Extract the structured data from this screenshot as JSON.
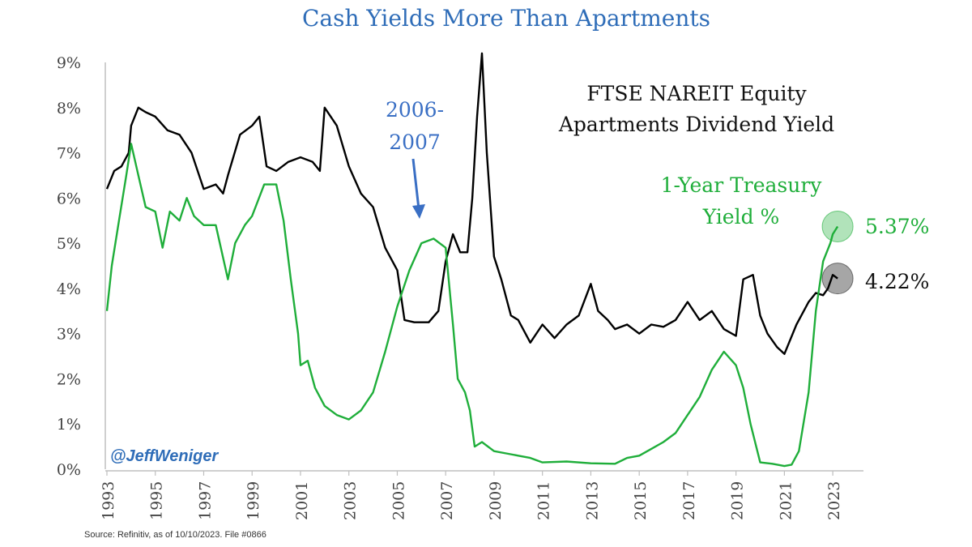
{
  "title": "Cash Yields More Than Apartments",
  "source": "Source: Refinitiv, as of 10/10/2023. File #0866",
  "handle": "@JeffWeniger",
  "colors": {
    "apartments": "#000000",
    "treasury": "#1fae3a",
    "title": "#2f6db8",
    "arrow": "#3a6fc4"
  },
  "chart_data": {
    "type": "line",
    "title": "Cash Yields More Than Apartments",
    "xlabel": "",
    "ylabel": "",
    "xlim": [
      1993,
      2024
    ],
    "ylim": [
      0,
      9
    ],
    "grid": false,
    "x_ticks": [
      "1993",
      "1995",
      "1997",
      "1999",
      "2001",
      "2003",
      "2005",
      "2007",
      "2009",
      "2011",
      "2013",
      "2015",
      "2017",
      "2019",
      "2021",
      "2023"
    ],
    "y_ticks": [
      "0%",
      "1%",
      "2%",
      "3%",
      "4%",
      "5%",
      "6%",
      "7%",
      "8%",
      "9%"
    ],
    "series": [
      {
        "name": "FTSE NAREIT Equity Apartments Dividend Yield",
        "color": "#000000",
        "points": [
          [
            1993.0,
            6.2
          ],
          [
            1993.3,
            6.6
          ],
          [
            1993.6,
            6.7
          ],
          [
            1993.9,
            7.0
          ],
          [
            1994.0,
            7.6
          ],
          [
            1994.3,
            8.0
          ],
          [
            1994.6,
            7.9
          ],
          [
            1995.0,
            7.8
          ],
          [
            1995.5,
            7.5
          ],
          [
            1996.0,
            7.4
          ],
          [
            1996.5,
            7.0
          ],
          [
            1997.0,
            6.2
          ],
          [
            1997.5,
            6.3
          ],
          [
            1997.8,
            6.1
          ],
          [
            1998.0,
            6.5
          ],
          [
            1998.5,
            7.4
          ],
          [
            1999.0,
            7.6
          ],
          [
            1999.3,
            7.8
          ],
          [
            1999.6,
            6.7
          ],
          [
            2000.0,
            6.6
          ],
          [
            2000.5,
            6.8
          ],
          [
            2001.0,
            6.9
          ],
          [
            2001.5,
            6.8
          ],
          [
            2001.8,
            6.6
          ],
          [
            2002.0,
            8.0
          ],
          [
            2002.5,
            7.6
          ],
          [
            2003.0,
            6.7
          ],
          [
            2003.5,
            6.1
          ],
          [
            2004.0,
            5.8
          ],
          [
            2004.5,
            4.9
          ],
          [
            2005.0,
            4.4
          ],
          [
            2005.3,
            3.3
          ],
          [
            2005.7,
            3.25
          ],
          [
            2006.3,
            3.25
          ],
          [
            2006.7,
            3.5
          ],
          [
            2007.0,
            4.6
          ],
          [
            2007.3,
            5.2
          ],
          [
            2007.6,
            4.8
          ],
          [
            2007.9,
            4.8
          ],
          [
            2008.1,
            6.0
          ],
          [
            2008.3,
            7.8
          ],
          [
            2008.5,
            9.2
          ],
          [
            2008.7,
            7.0
          ],
          [
            2009.0,
            4.7
          ],
          [
            2009.3,
            4.2
          ],
          [
            2009.7,
            3.4
          ],
          [
            2010.0,
            3.3
          ],
          [
            2010.5,
            2.8
          ],
          [
            2011.0,
            3.2
          ],
          [
            2011.5,
            2.9
          ],
          [
            2012.0,
            3.2
          ],
          [
            2012.5,
            3.4
          ],
          [
            2013.0,
            4.1
          ],
          [
            2013.3,
            3.5
          ],
          [
            2013.7,
            3.3
          ],
          [
            2014.0,
            3.1
          ],
          [
            2014.5,
            3.2
          ],
          [
            2015.0,
            3.0
          ],
          [
            2015.5,
            3.2
          ],
          [
            2016.0,
            3.15
          ],
          [
            2016.5,
            3.3
          ],
          [
            2017.0,
            3.7
          ],
          [
            2017.5,
            3.3
          ],
          [
            2018.0,
            3.5
          ],
          [
            2018.5,
            3.1
          ],
          [
            2019.0,
            2.95
          ],
          [
            2019.3,
            4.2
          ],
          [
            2019.7,
            4.3
          ],
          [
            2020.0,
            3.4
          ],
          [
            2020.3,
            3.0
          ],
          [
            2020.7,
            2.7
          ],
          [
            2021.0,
            2.55
          ],
          [
            2021.5,
            3.2
          ],
          [
            2022.0,
            3.7
          ],
          [
            2022.3,
            3.9
          ],
          [
            2022.6,
            3.85
          ],
          [
            2022.8,
            4.0
          ],
          [
            2023.0,
            4.3
          ],
          [
            2023.2,
            4.22
          ]
        ]
      },
      {
        "name": "1-Year Treasury Yield %",
        "color": "#1fae3a",
        "points": [
          [
            1993.0,
            3.5
          ],
          [
            1993.2,
            4.5
          ],
          [
            1993.5,
            5.5
          ],
          [
            1993.8,
            6.5
          ],
          [
            1994.0,
            7.2
          ],
          [
            1994.3,
            6.5
          ],
          [
            1994.6,
            5.8
          ],
          [
            1995.0,
            5.7
          ],
          [
            1995.3,
            4.9
          ],
          [
            1995.6,
            5.7
          ],
          [
            1996.0,
            5.5
          ],
          [
            1996.3,
            6.0
          ],
          [
            1996.6,
            5.6
          ],
          [
            1997.0,
            5.4
          ],
          [
            1997.5,
            5.4
          ],
          [
            1998.0,
            4.2
          ],
          [
            1998.3,
            5.0
          ],
          [
            1998.7,
            5.4
          ],
          [
            1999.0,
            5.6
          ],
          [
            1999.5,
            6.3
          ],
          [
            2000.0,
            6.3
          ],
          [
            2000.3,
            5.5
          ],
          [
            2000.6,
            4.2
          ],
          [
            2000.9,
            3.0
          ],
          [
            2001.0,
            2.3
          ],
          [
            2001.3,
            2.4
          ],
          [
            2001.6,
            1.8
          ],
          [
            2002.0,
            1.4
          ],
          [
            2002.5,
            1.2
          ],
          [
            2003.0,
            1.1
          ],
          [
            2003.5,
            1.3
          ],
          [
            2004.0,
            1.7
          ],
          [
            2004.5,
            2.6
          ],
          [
            2005.0,
            3.6
          ],
          [
            2005.5,
            4.4
          ],
          [
            2006.0,
            5.0
          ],
          [
            2006.5,
            5.1
          ],
          [
            2007.0,
            4.9
          ],
          [
            2007.3,
            3.2
          ],
          [
            2007.5,
            2.0
          ],
          [
            2007.8,
            1.7
          ],
          [
            2008.0,
            1.3
          ],
          [
            2008.2,
            0.5
          ],
          [
            2008.5,
            0.6
          ],
          [
            2009.0,
            0.4
          ],
          [
            2009.5,
            0.35
          ],
          [
            2010.0,
            0.3
          ],
          [
            2010.5,
            0.25
          ],
          [
            2011.0,
            0.15
          ],
          [
            2012.0,
            0.17
          ],
          [
            2013.0,
            0.13
          ],
          [
            2014.0,
            0.12
          ],
          [
            2014.5,
            0.25
          ],
          [
            2015.0,
            0.3
          ],
          [
            2015.5,
            0.45
          ],
          [
            2016.0,
            0.6
          ],
          [
            2016.5,
            0.8
          ],
          [
            2017.0,
            1.2
          ],
          [
            2017.5,
            1.6
          ],
          [
            2018.0,
            2.2
          ],
          [
            2018.5,
            2.6
          ],
          [
            2019.0,
            2.3
          ],
          [
            2019.3,
            1.8
          ],
          [
            2019.6,
            1.0
          ],
          [
            2020.0,
            0.15
          ],
          [
            2020.5,
            0.12
          ],
          [
            2021.0,
            0.07
          ],
          [
            2021.3,
            0.1
          ],
          [
            2021.6,
            0.4
          ],
          [
            2022.0,
            1.7
          ],
          [
            2022.3,
            3.5
          ],
          [
            2022.6,
            4.6
          ],
          [
            2022.9,
            5.0
          ],
          [
            2023.0,
            5.2
          ],
          [
            2023.2,
            5.37
          ]
        ]
      }
    ],
    "annotations": [
      {
        "id": "series-label-apartments",
        "text": "FTSE NAREIT Equity Apartments Dividend Yield"
      },
      {
        "id": "period-2006-2007",
        "text": "2006-2007"
      },
      {
        "id": "series-label-treasury",
        "text": "1-Year Treasury Yield %"
      },
      {
        "id": "end-label-treasury",
        "text": "5.37%",
        "x": 2023.2,
        "y": 5.37
      },
      {
        "id": "end-label-apartments",
        "text": "4.22%",
        "x": 2023.2,
        "y": 4.22
      }
    ]
  },
  "labels": {
    "apartments_line1": "FTSE NAREIT Equity",
    "apartments_line2": "Apartments Dividend Yield",
    "period_line1": "2006-",
    "period_line2": "2007",
    "treasury_line1": "1-Year Treasury",
    "treasury_line2": "Yield %",
    "end_treasury": "5.37%",
    "end_apartments": "4.22%"
  }
}
